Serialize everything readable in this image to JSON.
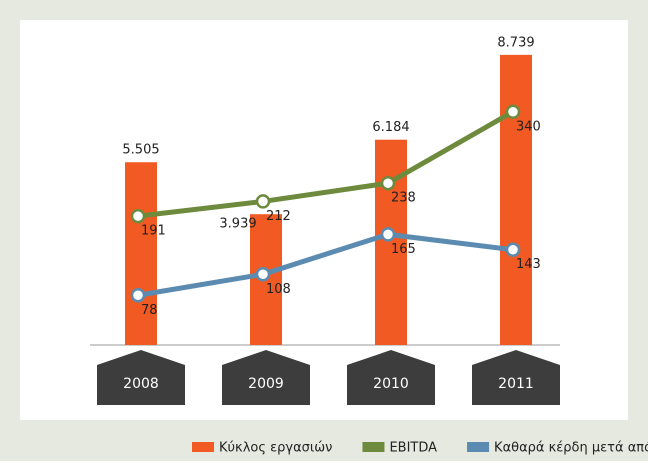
{
  "chart_data": {
    "type": "bar",
    "categories": [
      "2008",
      "2009",
      "2010",
      "2011"
    ],
    "ylim": [
      0,
      10000
    ],
    "y2lim": [
      7,
      481
    ],
    "series": [
      {
        "name": "Κύκλος εργασιών",
        "type": "bar",
        "color": "#f15a22",
        "values": [
          5505,
          3939,
          6184,
          8739
        ],
        "value_labels": [
          "5.505",
          "3.939",
          "6.184",
          "8.739"
        ]
      },
      {
        "name": "EBITDA",
        "type": "line",
        "axis": "y2",
        "color": "#6e8b3d",
        "values": [
          191,
          212,
          238,
          340
        ]
      },
      {
        "name": "Καθαρά κέρδη μετά από φόρους",
        "type": "line",
        "axis": "y2",
        "color": "#5b8bb0",
        "values": [
          78,
          108,
          165,
          143
        ]
      }
    ]
  }
}
